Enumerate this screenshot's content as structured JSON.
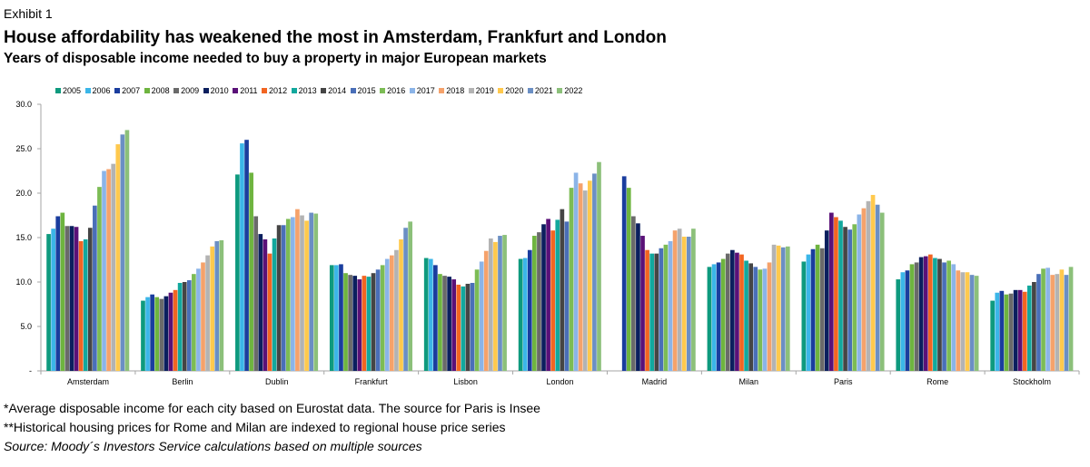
{
  "header": {
    "exhibit": "Exhibit 1",
    "title": "House affordability has weakened the most in Amsterdam, Frankfurt and London",
    "subtitle": "Years of disposable income needed to buy a property in major European markets"
  },
  "footer": {
    "note1": "*Average disposable income for each city based on Eurostat data. The source for Paris is Insee",
    "note2": "**Historical housing prices for Rome and Milan are indexed to regional house price series",
    "source": "Source: Moody´s Investors Service calculations based on multiple sources"
  },
  "chart_data": {
    "type": "bar",
    "ylim": [
      0,
      30
    ],
    "yticks": [
      "-",
      "5.0",
      "10.0",
      "15.0",
      "20.0",
      "25.0",
      "30.0"
    ],
    "grid": false,
    "legend_position": "top",
    "categories": [
      "Amsterdam",
      "Berlin",
      "Dublin",
      "Frankfurt",
      "Lisbon",
      "London",
      "Madrid",
      "Milan",
      "Paris",
      "Rome",
      "Stockholm"
    ],
    "series": [
      {
        "name": "2005",
        "color": "#0e9a7e",
        "values": [
          15.4,
          7.9,
          22.1,
          11.9,
          12.7,
          12.6,
          null,
          11.7,
          12.3,
          10.3,
          7.9
        ]
      },
      {
        "name": "2006",
        "color": "#3bb6e8",
        "values": [
          16.0,
          8.3,
          25.6,
          11.9,
          12.6,
          12.7,
          null,
          12.0,
          13.1,
          11.1,
          8.8
        ]
      },
      {
        "name": "2007",
        "color": "#1a3d9e",
        "values": [
          17.4,
          8.6,
          26.0,
          12.0,
          11.9,
          13.6,
          21.9,
          12.2,
          13.7,
          11.3,
          9.0
        ]
      },
      {
        "name": "2008",
        "color": "#6eb43f",
        "values": [
          17.8,
          8.3,
          22.3,
          11.0,
          10.9,
          15.2,
          20.6,
          12.6,
          14.2,
          12.0,
          8.6
        ]
      },
      {
        "name": "2009",
        "color": "#6a6a6a",
        "values": [
          16.3,
          8.1,
          17.4,
          10.8,
          10.7,
          15.6,
          17.4,
          13.2,
          13.8,
          12.2,
          8.7
        ]
      },
      {
        "name": "2010",
        "color": "#0b1f5e",
        "values": [
          16.3,
          8.4,
          15.4,
          10.7,
          10.6,
          16.5,
          16.6,
          13.6,
          15.8,
          12.8,
          9.1
        ]
      },
      {
        "name": "2011",
        "color": "#5a1178",
        "values": [
          16.2,
          8.8,
          14.8,
          10.3,
          10.3,
          17.1,
          15.2,
          13.3,
          17.8,
          12.9,
          9.1
        ]
      },
      {
        "name": "2012",
        "color": "#f26522",
        "values": [
          14.6,
          9.1,
          13.2,
          10.7,
          9.7,
          15.8,
          13.6,
          13.1,
          17.3,
          13.1,
          8.9
        ]
      },
      {
        "name": "2013",
        "color": "#12a89d",
        "values": [
          14.8,
          9.9,
          14.9,
          10.6,
          9.5,
          17.0,
          13.2,
          12.4,
          16.9,
          12.7,
          9.6
        ]
      },
      {
        "name": "2014",
        "color": "#454545",
        "values": [
          16.1,
          10.0,
          16.4,
          11.0,
          9.8,
          18.2,
          13.2,
          12.1,
          16.2,
          12.6,
          10.0
        ]
      },
      {
        "name": "2015",
        "color": "#4a6fb8",
        "values": [
          18.6,
          10.2,
          16.4,
          11.4,
          9.9,
          16.8,
          13.8,
          11.7,
          15.9,
          12.2,
          10.9
        ]
      },
      {
        "name": "2016",
        "color": "#7cbc55",
        "values": [
          20.7,
          10.9,
          17.1,
          11.9,
          11.4,
          20.6,
          14.2,
          11.4,
          16.5,
          12.4,
          11.5
        ]
      },
      {
        "name": "2017",
        "color": "#8bb4e8",
        "values": [
          22.5,
          11.5,
          17.3,
          12.6,
          12.3,
          22.3,
          14.6,
          11.5,
          17.6,
          12.0,
          11.6
        ]
      },
      {
        "name": "2018",
        "color": "#f5a26b",
        "values": [
          22.7,
          12.2,
          18.2,
          13.0,
          13.5,
          21.1,
          15.8,
          12.2,
          18.3,
          11.3,
          10.8
        ]
      },
      {
        "name": "2019",
        "color": "#b3b3b3",
        "values": [
          23.3,
          13.0,
          17.5,
          13.6,
          14.9,
          20.3,
          16.0,
          14.2,
          19.1,
          11.1,
          10.9
        ]
      },
      {
        "name": "2020",
        "color": "#ffc94d",
        "values": [
          25.5,
          14.0,
          16.9,
          14.8,
          14.5,
          21.4,
          15.1,
          14.1,
          19.8,
          11.1,
          11.4
        ]
      },
      {
        "name": "2021",
        "color": "#6b8fc4",
        "values": [
          26.6,
          14.6,
          17.8,
          16.1,
          15.2,
          22.2,
          15.1,
          13.9,
          18.7,
          10.8,
          10.8
        ]
      },
      {
        "name": "2022",
        "color": "#8cc07a",
        "values": [
          27.1,
          14.7,
          17.7,
          16.8,
          15.3,
          23.5,
          16.0,
          14.0,
          17.8,
          10.7,
          11.7
        ]
      }
    ]
  }
}
